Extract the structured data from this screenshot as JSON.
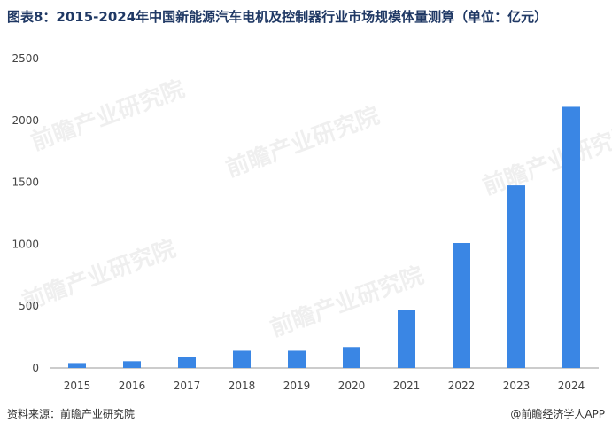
{
  "title": "图表8：2015-2024年中国新能源汽车电机及控制器行业市场规模体量测算（单位：亿元）",
  "source": "资料来源：前瞻产业研究院",
  "credit": "@前瞻经济学人APP",
  "watermark": "前瞻产业研究院",
  "colors": {
    "bar": "#3a86e4",
    "axis": "#999999",
    "title": "#1f3864"
  },
  "chart_data": {
    "type": "bar",
    "categories": [
      "2015",
      "2016",
      "2017",
      "2018",
      "2019",
      "2020",
      "2021",
      "2022",
      "2023",
      "2024"
    ],
    "values": [
      40,
      55,
      90,
      140,
      140,
      170,
      470,
      1010,
      1475,
      2110
    ],
    "ylim": [
      0,
      2500
    ],
    "yticks": [
      0,
      500,
      1000,
      1500,
      2000,
      2500
    ],
    "grid": false,
    "legend": "none"
  }
}
